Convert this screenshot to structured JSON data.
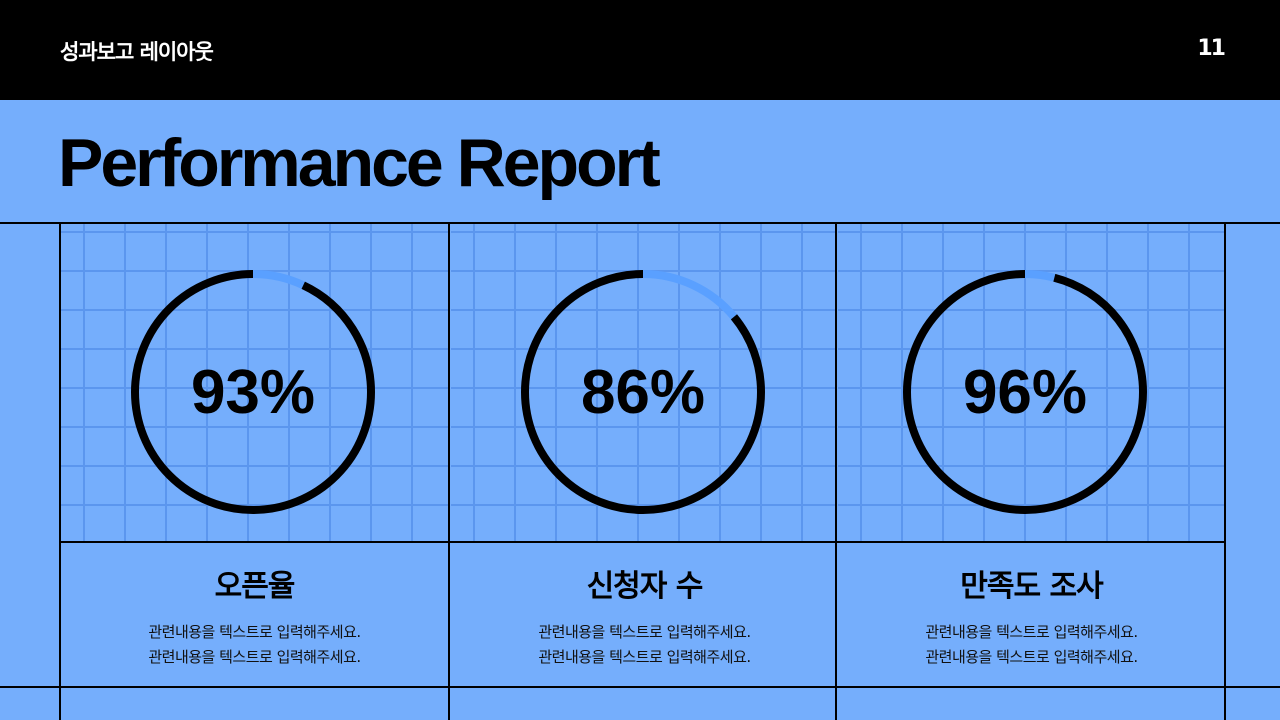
{
  "header": {
    "title": "성과보고 레이아웃",
    "page_number": "11"
  },
  "main_title": "Performance Report",
  "colors": {
    "background": "#75aefc",
    "grid": "#5b96ee",
    "ring": "#000000",
    "ring_gap": "#5aa0ff"
  },
  "metrics": [
    {
      "value": 93,
      "label_text": "93%",
      "title": "오픈율",
      "desc1": "관련내용을 텍스트로 입력해주세요.",
      "desc2": "관련내용을 텍스트로 입력해주세요."
    },
    {
      "value": 86,
      "label_text": "86%",
      "title": "신청자 수",
      "desc1": "관련내용을 텍스트로 입력해주세요.",
      "desc2": "관련내용을 텍스트로 입력해주세요."
    },
    {
      "value": 96,
      "label_text": "96%",
      "title": "만족도 조사",
      "desc1": "관련내용을 텍스트로 입력해주세요.",
      "desc2": "관련내용을 텍스트로 입력해주세요."
    }
  ]
}
